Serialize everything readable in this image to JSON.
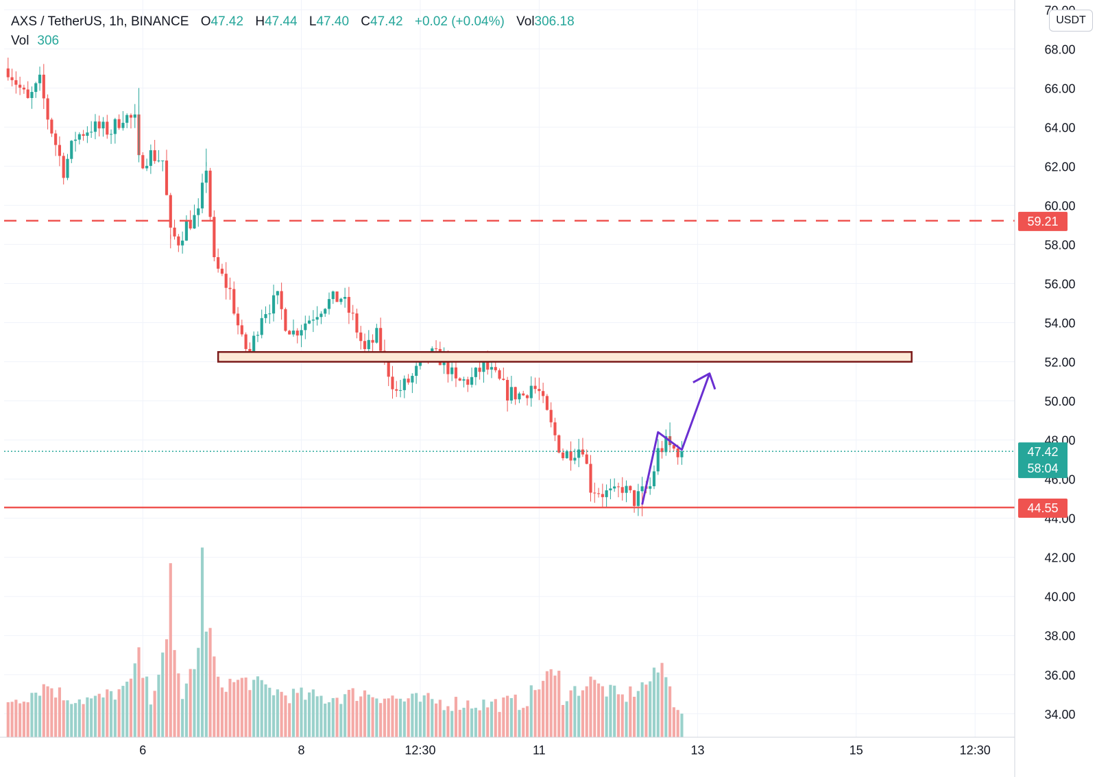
{
  "header": {
    "symbol": "AXS / TetherUS, 1h, BINANCE",
    "open_label": "O",
    "open": "47.42",
    "high_label": "H",
    "high": "47.44",
    "low_label": "L",
    "low": "47.40",
    "close_label": "C",
    "close": "47.42",
    "change": "+0.02 (+0.04%)",
    "vol_label": "Vol",
    "vol": "306.18",
    "vol2_label": "Vol",
    "vol2": "306"
  },
  "currency_button": "USDT",
  "colors": {
    "up": "#26a69a",
    "down": "#ef5350",
    "up_vol": "#9ad1cb",
    "down_vol": "#f4a9a6",
    "resistance": "#ef5350",
    "zone_fill": "#fde9d6",
    "zone_border": "#7a1a1a",
    "arrow": "#6a2fd1"
  },
  "chart_data": {
    "type": "candlestick",
    "y_ticks": [
      "34.00",
      "36.00",
      "38.00",
      "40.00",
      "42.00",
      "44.00",
      "46.00",
      "48.00",
      "50.00",
      "52.00",
      "54.00",
      "56.00",
      "58.00",
      "60.00",
      "62.00",
      "64.00",
      "66.00",
      "68.00",
      "70.00"
    ],
    "ylim": [
      32.8,
      70.5
    ],
    "x_ticks": [
      {
        "label": "6",
        "t": 34
      },
      {
        "label": "8",
        "t": 74
      },
      {
        "label": "12:30",
        "t": 104
      },
      {
        "label": "11",
        "t": 134
      },
      {
        "label": "13",
        "t": 174
      },
      {
        "label": "15",
        "t": 214
      },
      {
        "label": "12:30",
        "t": 244
      }
    ],
    "xlim": [
      -1,
      254
    ],
    "waypoints": [
      [
        0,
        67
      ],
      [
        5,
        65.3
      ],
      [
        8,
        66.3
      ],
      [
        10,
        64.5
      ],
      [
        14,
        61.8
      ],
      [
        17,
        63.5
      ],
      [
        21,
        64
      ],
      [
        26,
        63.8
      ],
      [
        29,
        64.6
      ],
      [
        32,
        64.3
      ],
      [
        33,
        62.2
      ],
      [
        36,
        62.6
      ],
      [
        39,
        62.3
      ],
      [
        41,
        58.5
      ],
      [
        43,
        58.2
      ],
      [
        45,
        59
      ],
      [
        48,
        59.5
      ],
      [
        50,
        62
      ],
      [
        52,
        57
      ],
      [
        56,
        55.6
      ],
      [
        59,
        53
      ],
      [
        61,
        52.4
      ],
      [
        64,
        54.5
      ],
      [
        68,
        55.2
      ],
      [
        70,
        54
      ],
      [
        72,
        53.5
      ],
      [
        76,
        54.2
      ],
      [
        80,
        55
      ],
      [
        84,
        55.3
      ],
      [
        87,
        54.2
      ],
      [
        90,
        52.5
      ],
      [
        93,
        53.3
      ],
      [
        96,
        51.5
      ],
      [
        98,
        50.4
      ],
      [
        102,
        51.2
      ],
      [
        106,
        52.4
      ],
      [
        110,
        52.1
      ],
      [
        113,
        50.9
      ],
      [
        117,
        51.1
      ],
      [
        120,
        51.8
      ],
      [
        123,
        51.2
      ],
      [
        126,
        50.4
      ],
      [
        130,
        50.3
      ],
      [
        132,
        50.8
      ],
      [
        134,
        50.4
      ],
      [
        137,
        48.7
      ],
      [
        140,
        47.2
      ],
      [
        143,
        47.5
      ],
      [
        145,
        47.7
      ],
      [
        147,
        45.6
      ],
      [
        150,
        45.3
      ],
      [
        153,
        45.2
      ],
      [
        155,
        45.6
      ],
      [
        158,
        44.9
      ],
      [
        160,
        45.3
      ],
      [
        162,
        45.6
      ],
      [
        164,
        47.4
      ],
      [
        166,
        47.8
      ],
      [
        168,
        47.5
      ],
      [
        170,
        47.42
      ]
    ],
    "volume_profile": [
      [
        0,
        34.6
      ],
      [
        5,
        34.9
      ],
      [
        10,
        35.4
      ],
      [
        14,
        34.8
      ],
      [
        22,
        34.6
      ],
      [
        30,
        35.2
      ],
      [
        33,
        36.5
      ],
      [
        36,
        34.8
      ],
      [
        41,
        38
      ],
      [
        44,
        34.9
      ],
      [
        48,
        37
      ],
      [
        50,
        39.5
      ],
      [
        53,
        35.4
      ],
      [
        60,
        35.6
      ],
      [
        70,
        34.9
      ],
      [
        80,
        34.7
      ],
      [
        90,
        35
      ],
      [
        100,
        34.6
      ],
      [
        110,
        34.5
      ],
      [
        120,
        34.4
      ],
      [
        130,
        34.5
      ],
      [
        137,
        36
      ],
      [
        140,
        34.8
      ],
      [
        147,
        35.5
      ],
      [
        155,
        34.7
      ],
      [
        162,
        35.6
      ],
      [
        165,
        36.3
      ],
      [
        168,
        34.6
      ],
      [
        170,
        34.2
      ]
    ],
    "big_volume_spikes": [
      [
        41,
        41.7
      ],
      [
        49,
        42.5
      ],
      [
        50,
        38.2
      ],
      [
        33,
        37.4
      ],
      [
        165,
        36.6
      ],
      [
        139,
        36.2
      ],
      [
        147,
        35.9
      ]
    ],
    "resistance_level": 59.21,
    "support_level": 44.55,
    "last_price": 47.42,
    "countdown": "58:04",
    "zone": {
      "t_start": 53,
      "t_end": 228,
      "low": 52.0,
      "high": 52.5
    },
    "arrow_path": [
      [
        160,
        44.7
      ],
      [
        164,
        48.4
      ],
      [
        170,
        47.5
      ],
      [
        177,
        51.4
      ]
    ],
    "arrow_head_t": 177
  }
}
